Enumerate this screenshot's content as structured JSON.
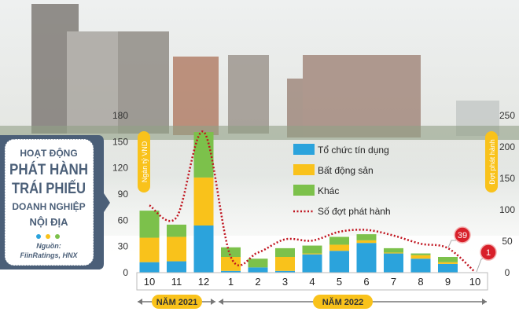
{
  "panel": {
    "line1": "HOẠT ĐỘNG",
    "line2": "PHÁT HÀNH",
    "line3": "TRÁI PHIẾU",
    "line4": "DOANH NGHIỆP",
    "line5": "NỘI ĐỊA",
    "source_label": "Nguồn:",
    "source": "FiinRatings, HNX"
  },
  "colors": {
    "blue": "#2ba3dc",
    "yellow": "#f9c21b",
    "green": "#7cc14b",
    "line": "#c0141f",
    "panel": "#4b5f78"
  },
  "chart_data": {
    "type": "bar",
    "stacked": true,
    "categories": [
      "10",
      "11",
      "12",
      "1",
      "2",
      "3",
      "4",
      "5",
      "6",
      "7",
      "8",
      "9",
      "10"
    ],
    "year_groups": [
      {
        "label": "NĂM 2021",
        "months": [
          "10",
          "11",
          "12"
        ]
      },
      {
        "label": "NĂM 2022",
        "months": [
          "1",
          "2",
          "3",
          "4",
          "5",
          "6",
          "7",
          "8",
          "9",
          "10"
        ]
      }
    ],
    "ylabel": "Ngàn tỷ VND",
    "ylim": [
      0,
      180
    ],
    "yticks": [
      "0",
      "30",
      "60",
      "90",
      "120",
      "150",
      "180"
    ],
    "y2label": "Đợt phát hành",
    "y2lim": [
      0,
      250
    ],
    "y2ticks": [
      "0",
      "50",
      "100",
      "150",
      "200",
      "250"
    ],
    "series": [
      {
        "name": "Tổ chức tín dụng",
        "color": "#2ba3dc",
        "values": [
          12,
          13,
          54,
          2,
          6,
          2,
          21,
          25,
          34,
          22,
          16,
          10,
          0
        ]
      },
      {
        "name": "Bất động sản",
        "color": "#f9c21b",
        "values": [
          28,
          28,
          55,
          16,
          0,
          16,
          1,
          7,
          3,
          1,
          4,
          2,
          0
        ]
      },
      {
        "name": "Khác",
        "color": "#7cc14b",
        "values": [
          31,
          14,
          52,
          11,
          10,
          10,
          9,
          9,
          7,
          5,
          2,
          6,
          0
        ]
      }
    ],
    "line_series": {
      "name": "Số đợt phát hành",
      "axis": "right",
      "values": [
        107,
        88,
        224,
        25,
        32,
        53,
        51,
        65,
        68,
        59,
        46,
        39,
        1
      ]
    },
    "annotations": [
      "39",
      "1"
    ],
    "legend_position": "top-center",
    "grid": false
  }
}
